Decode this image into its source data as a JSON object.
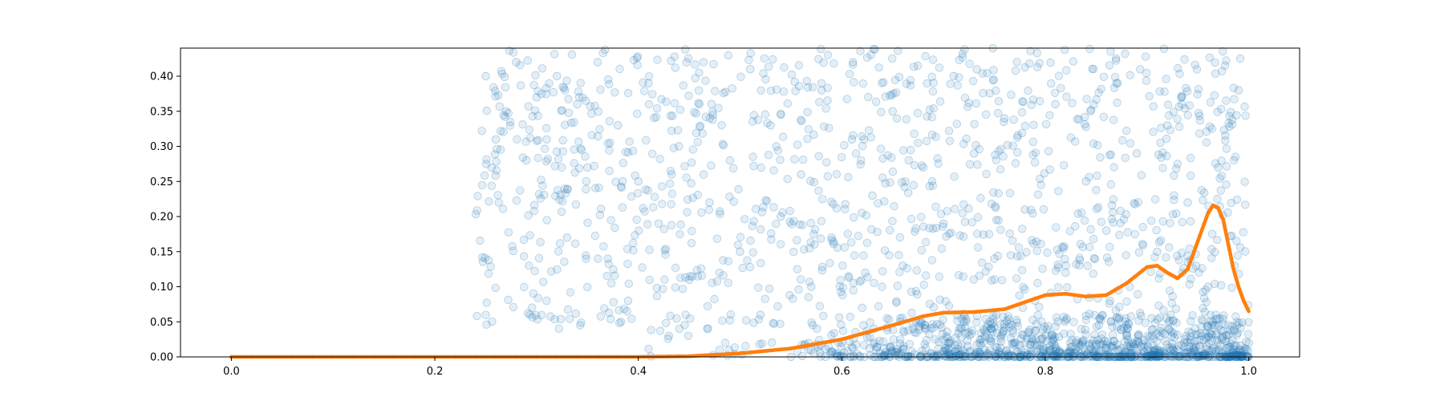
{
  "chart_data": {
    "type": "scatter",
    "title": "",
    "xlabel": "",
    "ylabel": "",
    "xlim": [
      -0.05,
      1.05
    ],
    "ylim": [
      0.0,
      0.44
    ],
    "x_ticks": [
      0.0,
      0.2,
      0.4,
      0.6,
      0.8,
      1.0
    ],
    "x_tick_labels": [
      "0.0",
      "0.2",
      "0.4",
      "0.6",
      "0.8",
      "1.0"
    ],
    "y_ticks": [
      0.0,
      0.05,
      0.1,
      0.15,
      0.2,
      0.25,
      0.3,
      0.35,
      0.4
    ],
    "y_tick_labels": [
      "0.00",
      "0.05",
      "0.10",
      "0.15",
      "0.20",
      "0.25",
      "0.30",
      "0.35",
      "0.40"
    ],
    "grid": false,
    "legend": "none",
    "series": [
      {
        "kind": "scatter-points",
        "color": "#1f77b4",
        "opacity": 0.12,
        "description_of_distribution": "dense cloud, x from 0.24 to 1.0, y spread 0 to 0.44, heavy cluster near y=0 for x>0.55",
        "points": [
          [
            0.25,
            0.4
          ],
          [
            0.26,
            0.31
          ],
          [
            0.27,
            0.35
          ],
          [
            0.28,
            0.42
          ],
          [
            0.29,
            0.28
          ],
          [
            0.3,
            0.37
          ],
          [
            0.31,
            0.31
          ],
          [
            0.32,
            0.4
          ],
          [
            0.33,
            0.17
          ],
          [
            0.34,
            0.36
          ],
          [
            0.35,
            0.27
          ],
          [
            0.36,
            0.42
          ],
          [
            0.37,
            0.14
          ],
          [
            0.38,
            0.33
          ],
          [
            0.39,
            0.08
          ],
          [
            0.4,
            0.25
          ],
          [
            0.41,
            0.39
          ],
          [
            0.42,
            0.19
          ],
          [
            0.43,
            0.03
          ],
          [
            0.44,
            0.3
          ],
          [
            0.45,
            0.11
          ],
          [
            0.46,
            0.36
          ],
          [
            0.47,
            0.22
          ],
          [
            0.48,
            0.01
          ],
          [
            0.49,
            0.28
          ],
          [
            0.5,
            0.15
          ],
          [
            0.51,
            0.41
          ],
          [
            0.52,
            0.06
          ],
          [
            0.53,
            0.33
          ],
          [
            0.54,
            0.2
          ],
          [
            0.55,
            0.0
          ],
          [
            0.56,
            0.26
          ],
          [
            0.57,
            0.1
          ],
          [
            0.58,
            0.38
          ],
          [
            0.59,
            0.17
          ],
          [
            0.6,
            0.02
          ],
          [
            0.61,
            0.31
          ],
          [
            0.62,
            0.07
          ],
          [
            0.63,
            0.23
          ],
          [
            0.64,
            0.0
          ],
          [
            0.65,
            0.35
          ],
          [
            0.66,
            0.13
          ],
          [
            0.67,
            0.04
          ],
          [
            0.68,
            0.27
          ],
          [
            0.69,
            0.0
          ],
          [
            0.7,
            0.19
          ],
          [
            0.71,
            0.4
          ],
          [
            0.72,
            0.05
          ],
          [
            0.73,
            0.29
          ],
          [
            0.74,
            0.01
          ],
          [
            0.75,
            0.14
          ],
          [
            0.76,
            0.34
          ],
          [
            0.77,
            0.0
          ],
          [
            0.78,
            0.21
          ],
          [
            0.79,
            0.08
          ],
          [
            0.8,
            0.0
          ],
          [
            0.81,
            0.36
          ],
          [
            0.82,
            0.12
          ],
          [
            0.83,
            0.02
          ],
          [
            0.84,
            0.25
          ],
          [
            0.85,
            0.0
          ],
          [
            0.86,
            0.18
          ],
          [
            0.87,
            0.39
          ],
          [
            0.88,
            0.03
          ],
          [
            0.89,
            0.29
          ],
          [
            0.9,
            0.0
          ],
          [
            0.91,
            0.15
          ],
          [
            0.92,
            0.33
          ],
          [
            0.93,
            0.01
          ],
          [
            0.94,
            0.22
          ],
          [
            0.95,
            0.0
          ],
          [
            0.96,
            0.1
          ],
          [
            0.97,
            0.27
          ],
          [
            0.98,
            0.0
          ],
          [
            0.99,
            0.38
          ],
          [
            1.0,
            0.02
          ]
        ]
      },
      {
        "kind": "density-curve",
        "color": "#ff7f0e",
        "points": [
          [
            0.0,
            0.0
          ],
          [
            0.1,
            0.0
          ],
          [
            0.2,
            0.0
          ],
          [
            0.3,
            0.0
          ],
          [
            0.4,
            0.0
          ],
          [
            0.45,
            0.001
          ],
          [
            0.5,
            0.005
          ],
          [
            0.55,
            0.012
          ],
          [
            0.6,
            0.025
          ],
          [
            0.65,
            0.045
          ],
          [
            0.68,
            0.058
          ],
          [
            0.7,
            0.063
          ],
          [
            0.73,
            0.064
          ],
          [
            0.76,
            0.068
          ],
          [
            0.78,
            0.078
          ],
          [
            0.8,
            0.088
          ],
          [
            0.82,
            0.09
          ],
          [
            0.84,
            0.086
          ],
          [
            0.86,
            0.088
          ],
          [
            0.88,
            0.105
          ],
          [
            0.9,
            0.128
          ],
          [
            0.91,
            0.13
          ],
          [
            0.92,
            0.12
          ],
          [
            0.93,
            0.112
          ],
          [
            0.94,
            0.125
          ],
          [
            0.95,
            0.165
          ],
          [
            0.96,
            0.205
          ],
          [
            0.965,
            0.216
          ],
          [
            0.97,
            0.212
          ],
          [
            0.975,
            0.195
          ],
          [
            0.98,
            0.16
          ],
          [
            0.985,
            0.125
          ],
          [
            0.99,
            0.1
          ],
          [
            0.995,
            0.08
          ],
          [
            1.0,
            0.065
          ]
        ]
      }
    ]
  }
}
